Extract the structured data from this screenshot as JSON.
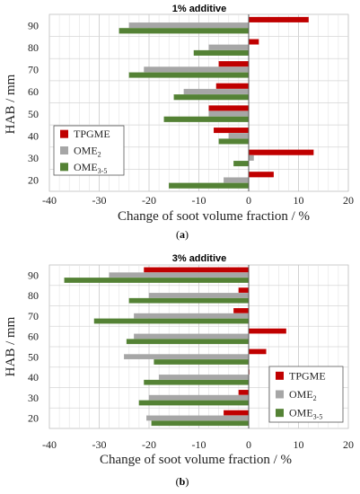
{
  "chart_data": [
    {
      "type": "bar",
      "orientation": "horizontal",
      "title": "1% additive",
      "xlabel": "Change of soot volume fraction / %",
      "ylabel": "HAB / mm",
      "caption_letter": "a",
      "categories": [
        "90",
        "80",
        "70",
        "60",
        "50",
        "40",
        "30",
        "20"
      ],
      "x_ticks": [
        "-40",
        "-30",
        "-20",
        "-10",
        "0",
        "10",
        "20"
      ],
      "xlim": [
        -40,
        20
      ],
      "grid": true,
      "legend_position": "bottom-left",
      "series": [
        {
          "name": "TPGME",
          "name_base": "TPGME",
          "name_sub": "",
          "color": "#c00000",
          "values": [
            12,
            2,
            -6,
            -6.5,
            -8,
            -7,
            13,
            5
          ]
        },
        {
          "name": "OME2",
          "name_base": "OME",
          "name_sub": "2",
          "color": "#a6a6a6",
          "values": [
            -24,
            -8,
            -21,
            -13,
            -8,
            -4,
            1,
            -5
          ]
        },
        {
          "name": "OME3-5",
          "name_base": "OME",
          "name_sub": "3-5",
          "color": "#548235",
          "values": [
            -26,
            -11,
            -24,
            -15,
            -17,
            -6,
            -3,
            -16
          ]
        }
      ]
    },
    {
      "type": "bar",
      "orientation": "horizontal",
      "title": "3% additive",
      "xlabel": "Change of soot volume fraction / %",
      "ylabel": "HAB / mm",
      "caption_letter": "b",
      "categories": [
        "90",
        "80",
        "70",
        "60",
        "50",
        "40",
        "30",
        "20"
      ],
      "x_ticks": [
        "-40",
        "-30",
        "-20",
        "-10",
        "0",
        "10",
        "20"
      ],
      "xlim": [
        -40,
        20
      ],
      "grid": true,
      "legend_position": "bottom-right",
      "series": [
        {
          "name": "TPGME",
          "name_base": "TPGME",
          "name_sub": "",
          "color": "#c00000",
          "values": [
            -21,
            -2,
            -3,
            7.5,
            3.5,
            0,
            -2,
            -5
          ]
        },
        {
          "name": "OME2",
          "name_base": "OME",
          "name_sub": "2",
          "color": "#a6a6a6",
          "values": [
            -28,
            -20,
            -23,
            -23,
            -25,
            -18,
            -20,
            -20.5
          ]
        },
        {
          "name": "OME3-5",
          "name_base": "OME",
          "name_sub": "3-5",
          "color": "#548235",
          "values": [
            -37,
            -24,
            -31,
            -24.5,
            -19,
            -21,
            -22,
            -19.5
          ]
        }
      ]
    }
  ]
}
